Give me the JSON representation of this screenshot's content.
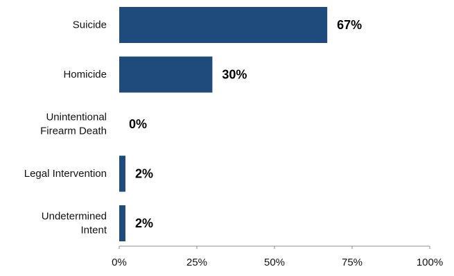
{
  "chart_data": {
    "type": "bar",
    "orientation": "horizontal",
    "categories": [
      "Suicide",
      "Homicide",
      "Unintentional Firearm Death",
      "Legal Intervention",
      "Undetermined Intent"
    ],
    "category_lines": [
      [
        "Suicide"
      ],
      [
        "Homicide"
      ],
      [
        "Unintentional",
        "Firearm Death"
      ],
      [
        "Legal Intervention"
      ],
      [
        "Undetermined",
        "Intent"
      ]
    ],
    "values": [
      67,
      30,
      0,
      2,
      2
    ],
    "value_labels": [
      "67%",
      "30%",
      "0%",
      "2%",
      "2%"
    ],
    "xlim": [
      0,
      100
    ],
    "x_ticks": [
      0,
      25,
      50,
      75,
      100
    ],
    "x_tick_labels": [
      "0%",
      "25%",
      "50%",
      "75%",
      "100%"
    ],
    "bar_color": "#1F4A7C",
    "grid": false,
    "legend": "none"
  }
}
